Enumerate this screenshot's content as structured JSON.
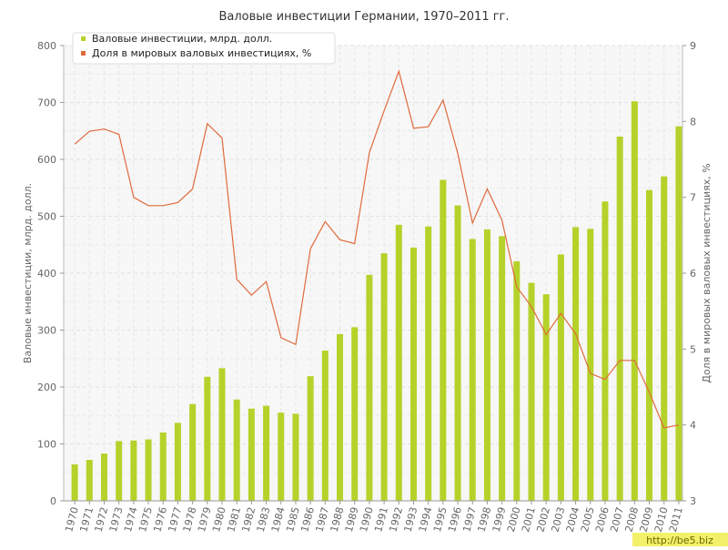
{
  "chart_data": {
    "type": "bar",
    "title": "Валовые инвестиции Германии, 1970–2011 гг.",
    "categories": [
      "1970",
      "1971",
      "1972",
      "1973",
      "1974",
      "1975",
      "1976",
      "1977",
      "1978",
      "1979",
      "1980",
      "1981",
      "1982",
      "1983",
      "1984",
      "1985",
      "1986",
      "1987",
      "1988",
      "1989",
      "1990",
      "1991",
      "1992",
      "1993",
      "1994",
      "1995",
      "1996",
      "1997",
      "1998",
      "1999",
      "2000",
      "2001",
      "2002",
      "2003",
      "2004",
      "2005",
      "2006",
      "2007",
      "2008",
      "2009",
      "2010",
      "2011"
    ],
    "series": [
      {
        "name": "Валовые инвестиции, млрд. долл.",
        "type": "bar",
        "axis": "left",
        "color": "#b5d22a",
        "values": [
          64,
          72,
          83,
          105,
          106,
          108,
          120,
          137,
          170,
          218,
          233,
          178,
          162,
          167,
          155,
          153,
          219,
          264,
          293,
          305,
          397,
          435,
          485,
          445,
          482,
          564,
          519,
          460,
          477,
          465,
          421,
          383,
          363,
          433,
          481,
          478,
          526,
          640,
          702,
          546,
          570,
          658
        ]
      },
      {
        "name": "Доля в мировых валовых инвестициях, %",
        "type": "line",
        "axis": "right",
        "color": "#e06a3c",
        "values": [
          7.7,
          7.87,
          7.9,
          7.83,
          7.0,
          6.89,
          6.89,
          6.93,
          7.11,
          7.97,
          7.78,
          5.92,
          5.71,
          5.89,
          5.15,
          5.06,
          6.32,
          6.68,
          6.44,
          6.39,
          7.59,
          8.14,
          8.66,
          7.91,
          7.93,
          8.28,
          7.58,
          6.66,
          7.11,
          6.7,
          5.82,
          5.56,
          5.19,
          5.47,
          5.2,
          4.68,
          4.6,
          4.85,
          4.85,
          4.43,
          3.96,
          4.0
        ]
      }
    ],
    "ylabel": "Валовые инвестиции, млрд. долл.",
    "y2label": "Доля в мировых валовых инвестициях, %",
    "ylim": [
      0,
      800
    ],
    "y2lim": [
      3,
      9
    ],
    "yticks": [
      0,
      100,
      200,
      300,
      400,
      500,
      600,
      700,
      800
    ],
    "y2ticks": [
      3,
      4,
      5,
      6,
      7,
      8,
      9
    ],
    "grid": true,
    "legend": "top-left"
  },
  "watermark": "http://be5.biz"
}
